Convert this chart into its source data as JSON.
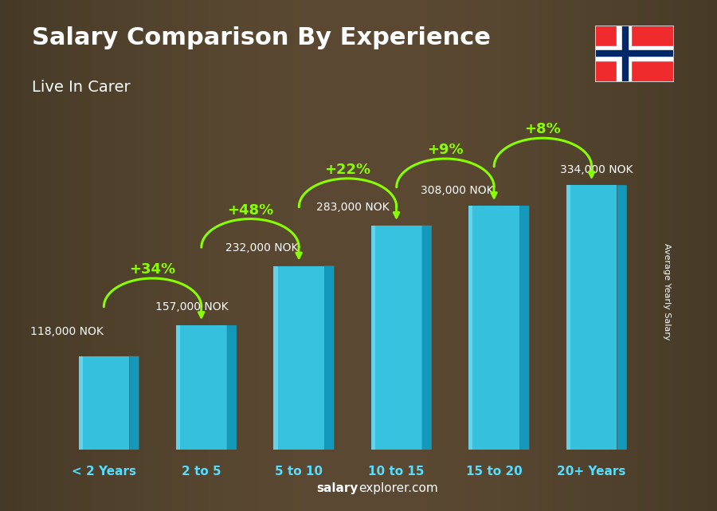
{
  "title": "Salary Comparison By Experience",
  "subtitle": "Live In Carer",
  "categories": [
    "< 2 Years",
    "2 to 5",
    "5 to 10",
    "10 to 15",
    "15 to 20",
    "20+ Years"
  ],
  "values": [
    118000,
    157000,
    232000,
    283000,
    308000,
    334000
  ],
  "salary_labels": [
    "118,000 NOK",
    "157,000 NOK",
    "232,000 NOK",
    "283,000 NOK",
    "308,000 NOK",
    "334,000 NOK"
  ],
  "pct_changes": [
    "+34%",
    "+48%",
    "+22%",
    "+9%",
    "+8%"
  ],
  "bar_face": "#33CCEE",
  "bar_left": "#1599BB",
  "bar_top": "#66DDFF",
  "bar_highlight": "#AAEEFF",
  "title_color": "#FFFFFF",
  "subtitle_color": "#FFFFFF",
  "salary_label_color": "#FFFFFF",
  "pct_color": "#88FF00",
  "xlabel_color": "#55DDFF",
  "watermark_bold": "salary",
  "watermark_rest": "explorer.com",
  "ylabel_text": "Average Yearly Salary",
  "ylim_max": 400000,
  "bg_overlay_color": "#000000",
  "bg_overlay_alpha": 0.35
}
